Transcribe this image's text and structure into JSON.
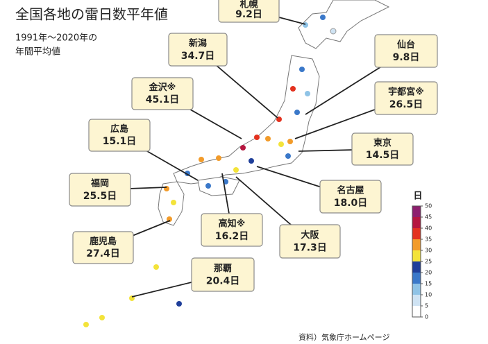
{
  "header": {
    "title": "全国各地の雷日数平年値",
    "subtitle": [
      "1991年〜2020年の",
      "年間平均値"
    ]
  },
  "callouts": [
    {
      "name": "札幌",
      "value": "9.2日"
    },
    {
      "name": "新潟",
      "value": "34.7日"
    },
    {
      "name": "金沢※",
      "value": "45.1日"
    },
    {
      "name": "広島",
      "value": "15.1日"
    },
    {
      "name": "福岡",
      "value": "25.5日"
    },
    {
      "name": "鹿児島",
      "value": "27.4日"
    },
    {
      "name": "高知※",
      "value": "16.2日"
    },
    {
      "name": "那覇",
      "value": "20.4日"
    },
    {
      "name": "大阪",
      "value": "17.3日"
    },
    {
      "name": "名古屋",
      "value": "18.0日"
    },
    {
      "name": "東京",
      "value": "14.5日"
    },
    {
      "name": "宇都宮※",
      "value": "26.5日"
    },
    {
      "name": "仙台",
      "value": "9.8日"
    }
  ],
  "legend": {
    "unit": "日",
    "ticks": [
      0,
      5,
      10,
      15,
      20,
      25,
      30,
      35,
      40,
      45,
      50
    ],
    "colors": [
      "#ffffff",
      "#cfe3f3",
      "#8fc3e6",
      "#3a78c9",
      "#1f3f9a",
      "#f3e33a",
      "#f29b2a",
      "#e3321f",
      "#b5163f",
      "#8d1f6e"
    ]
  },
  "source": "資料）気象庁ホームページ"
}
